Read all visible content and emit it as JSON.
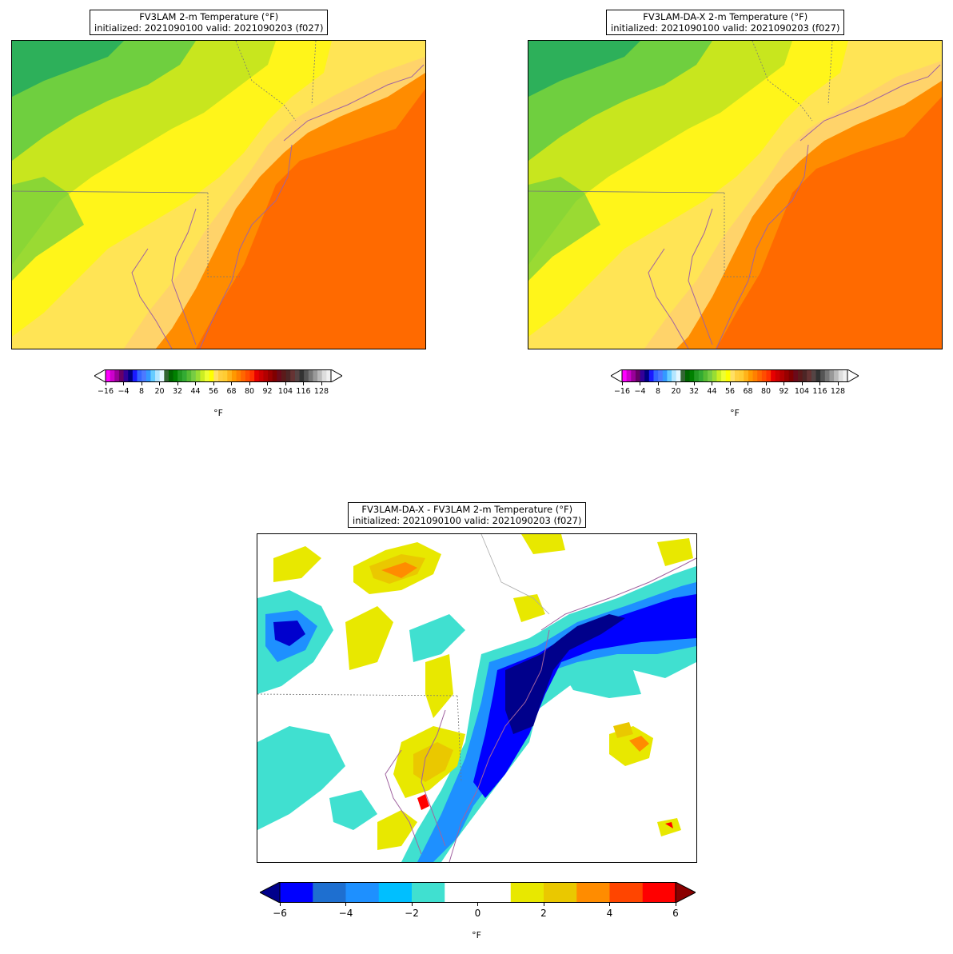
{
  "panels": {
    "left": {
      "title_line1": "FV3LAM 2-m Temperature (°F)",
      "title_line2": "initialized: 2021090100 valid: 2021090203 (f027)"
    },
    "right": {
      "title_line1": "FV3LAM-DA-X 2-m Temperature (°F)",
      "title_line2": "initialized: 2021090100 valid: 2021090203 (f027)"
    },
    "bottom": {
      "title_line1": "FV3LAM-DA-X - FV3LAM 2-m Temperature (°F)",
      "title_line2": "initialized: 2021090100 valid: 2021090203 (f027)"
    }
  },
  "temp_colorbar": {
    "unit_label": "°F",
    "tick_labels": [
      "−16",
      "−4",
      "8",
      "20",
      "32",
      "44",
      "56",
      "68",
      "80",
      "92",
      "104",
      "116",
      "128"
    ],
    "colors": [
      "#ff00ff",
      "#cc00cc",
      "#990099",
      "#660066",
      "#330099",
      "#000080",
      "#1a1aff",
      "#3366ff",
      "#4d79ff",
      "#3399ff",
      "#66ccff",
      "#b3e6ff",
      "#e6f7ff",
      "#336633",
      "#006600",
      "#008000",
      "#229922",
      "#33aa33",
      "#55bb33",
      "#77cc44",
      "#99dd33",
      "#ccee22",
      "#eeff33",
      "#ffff00",
      "#ffe066",
      "#ffd040",
      "#ffcc33",
      "#ffb31a",
      "#ff9900",
      "#ff8000",
      "#ff6600",
      "#ff4d00",
      "#ff3300",
      "#e60000",
      "#cc0000",
      "#b30000",
      "#990000",
      "#800000",
      "#6b0a1a",
      "#5c1a1a",
      "#4d2626",
      "#663333",
      "#554444",
      "#333333",
      "#555555",
      "#777777",
      "#999999",
      "#bbbbbb",
      "#dddddd",
      "#f0f0f0"
    ],
    "under_color": "#ffffff",
    "over_color": "#ffffff"
  },
  "diff_colorbar": {
    "unit_label": "°F",
    "tick_labels": [
      "−6",
      "−4",
      "−2",
      "0",
      "2",
      "4",
      "6"
    ],
    "colors": [
      "#0000ff",
      "#1e6fd0",
      "#1e90ff",
      "#00bfff",
      "#40e0d0",
      "#ffffff",
      "#ffffff",
      "#e8e800",
      "#eac800",
      "#ff8c00",
      "#ff4500",
      "#ff0000"
    ],
    "under_color": "#00008b",
    "over_color": "#8b0000"
  },
  "map_colors": {
    "green_dark": "#2db05a",
    "green_mid": "#6fcf3f",
    "yellow_green": "#c8e61e",
    "yellow": "#fff51a",
    "light_orange": "#ffd36a",
    "orange": "#ff8c00",
    "dark_orange": "#ff6a00",
    "coast": "#a063a0",
    "border": "#888888"
  }
}
